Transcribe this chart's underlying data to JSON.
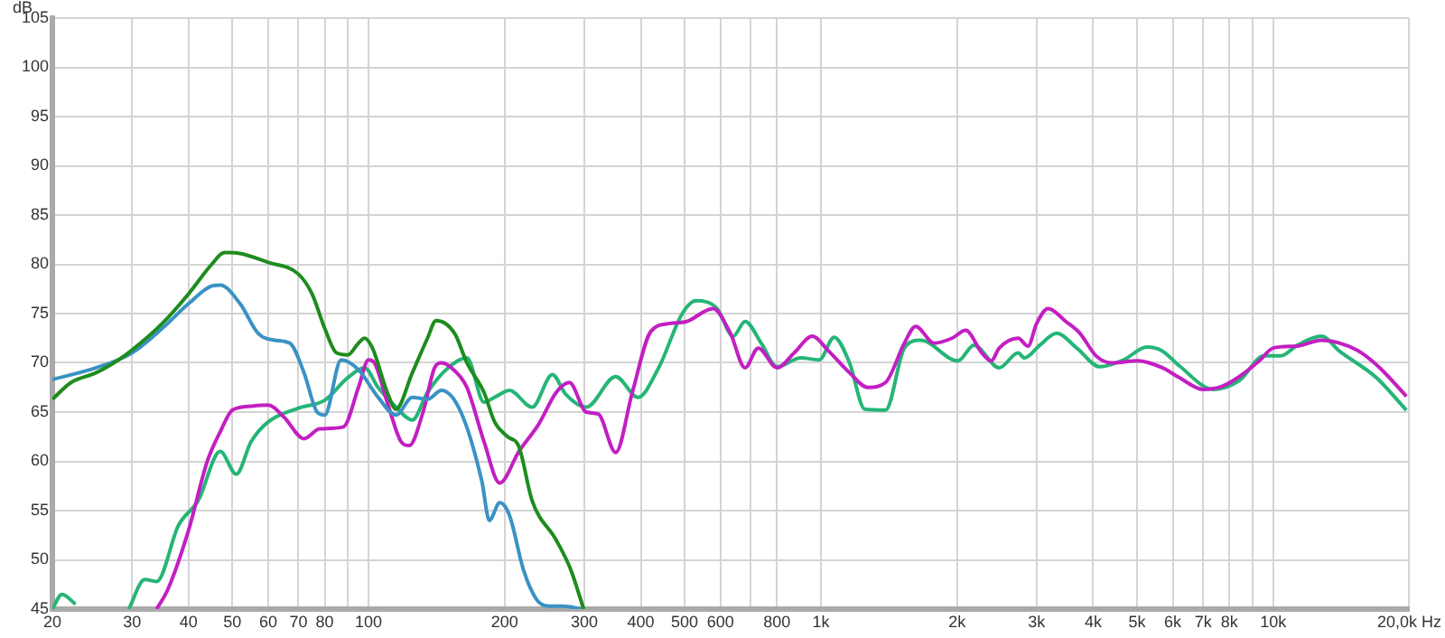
{
  "chart_data": {
    "type": "line",
    "ylabel": "dB",
    "log": "x",
    "grid": true,
    "legend": false,
    "marker": "none",
    "line_style": "solid",
    "xlim": [
      20,
      20000
    ],
    "ylim": [
      45,
      105
    ],
    "xticks": [
      20,
      30,
      40,
      50,
      60,
      70,
      80,
      {
        "value": 90,
        "label": null
      },
      100,
      200,
      300,
      400,
      500,
      600,
      {
        "value": 700,
        "label": null
      },
      800,
      {
        "value": 1000,
        "label": "1k"
      },
      {
        "value": 2000,
        "label": "2k"
      },
      {
        "value": 3000,
        "label": "3k"
      },
      {
        "value": 4000,
        "label": "4k"
      },
      {
        "value": 5000,
        "label": "5k"
      },
      {
        "value": 6000,
        "label": "6k"
      },
      {
        "value": 7000,
        "label": "7k"
      },
      {
        "value": 8000,
        "label": "8k"
      },
      {
        "value": 9000,
        "label": null
      },
      {
        "value": 10000,
        "label": "10k"
      },
      {
        "value": 20000,
        "label": "20,0k Hz"
      }
    ],
    "yticks": [
      45,
      50,
      55,
      60,
      65,
      70,
      75,
      80,
      85,
      90,
      95,
      100,
      105
    ],
    "series": [
      {
        "color": "#1e8c1e",
        "x": [
          20,
          22,
          25,
          28,
          30,
          35,
          40,
          45,
          48,
          52,
          60,
          70,
          75,
          80,
          85,
          90,
          95,
          98,
          102,
          110,
          115,
          125,
          135,
          141,
          155,
          165,
          180,
          190,
          203,
          215,
          230,
          260,
          280,
          299
        ],
        "values": [
          66.3,
          68,
          69,
          70.3,
          71.3,
          74,
          77,
          80,
          81.2,
          81.1,
          80.2,
          79,
          77,
          73.5,
          71,
          70.8,
          72,
          72.5,
          71.5,
          67,
          65.3,
          69,
          72.5,
          74.3,
          73,
          70,
          67,
          64,
          62.5,
          61.5,
          56,
          52,
          49,
          45
        ]
      },
      {
        "color": "#3a92c4",
        "x": [
          20,
          25,
          30,
          35,
          40,
          45,
          47,
          52,
          57,
          62,
          67,
          72,
          77,
          80,
          87,
          95,
          105,
          115,
          125,
          135,
          145,
          160,
          178,
          185,
          195,
          205,
          220,
          235,
          250,
          270,
          295
        ],
        "values": [
          68.3,
          69.5,
          71,
          73.5,
          76,
          77.8,
          77.9,
          76,
          73,
          72.3,
          72,
          69,
          65,
          64.7,
          70.3,
          69.3,
          66.5,
          64.7,
          66.5,
          66.3,
          67.2,
          65,
          58,
          54,
          55.8,
          54.5,
          49,
          46,
          45.3,
          45.3,
          45
        ]
      },
      {
        "color": "#c21fc2",
        "x": [
          34,
          36,
          40,
          44,
          47,
          50,
          55,
          60,
          65,
          72,
          78,
          88,
          95,
          100,
          103,
          110,
          118,
          123,
          132,
          140,
          145,
          155,
          165,
          180,
          195,
          215,
          238,
          260,
          278,
          303,
          322,
          352,
          383,
          421,
          464,
          505,
          578,
          631,
          680,
          727,
          800,
          873,
          957,
          1040,
          1157,
          1270,
          1390,
          1530,
          1620,
          1780,
          1950,
          2090,
          2270,
          2380,
          2480,
          2730,
          2870,
          3000,
          3180,
          3480,
          3740,
          4060,
          4400,
          5020,
          5690,
          6200,
          7000,
          7700,
          8420,
          9320,
          10000,
          11320,
          12800,
          15300,
          17200,
          19700
        ],
        "values": [
          45,
          47,
          53,
          60,
          63,
          65.2,
          65.6,
          65.7,
          64.5,
          62.3,
          63.3,
          63.5,
          67.5,
          70.3,
          70,
          66,
          62,
          61.6,
          65,
          69.5,
          70,
          69.2,
          67.5,
          62,
          57.8,
          61,
          63.8,
          67,
          68,
          65,
          64.8,
          60.9,
          67,
          73.2,
          74,
          74.2,
          75.5,
          73,
          69.5,
          71.5,
          69.5,
          71,
          72.7,
          71.2,
          69,
          67.5,
          68,
          72,
          73.7,
          72,
          72.5,
          73.3,
          71,
          70.2,
          71.5,
          72.5,
          71.7,
          74,
          75.5,
          74.2,
          73,
          70.7,
          70,
          70.2,
          69.5,
          68.5,
          67.3,
          67.6,
          68.6,
          70.2,
          71.5,
          71.7,
          72.3,
          71.3,
          69.5,
          66.6
        ]
      },
      {
        "color": "#25b577",
        "x": [
          20,
          21,
          22.5,
          null,
          29.5,
          32,
          34,
          38,
          42,
          47,
          51,
          55,
          60,
          70,
          80,
          90,
          98,
          105,
          115,
          125,
          135,
          150,
          165,
          180,
          190,
          205,
          230,
          255,
          273,
          303,
          352,
          394,
          438,
          494,
          530,
          590,
          640,
          680,
          738,
          800,
          903,
          992,
          1070,
          1157,
          1250,
          1390,
          1530,
          1660,
          2010,
          2180,
          2480,
          2730,
          2820,
          3050,
          3320,
          3680,
          4140,
          4670,
          5260,
          5690,
          6200,
          7380,
          8420,
          9540,
          10400,
          11320,
          12800,
          14000,
          16900,
          19700
        ],
        "values": [
          45,
          46.5,
          45.5,
          null,
          45,
          48,
          47.8,
          53.5,
          56,
          61,
          58.7,
          62,
          64,
          65.4,
          66.2,
          68.5,
          69.5,
          67.5,
          65.5,
          64.2,
          67,
          69.5,
          70.5,
          66,
          66.5,
          67.2,
          65.5,
          68.8,
          66.8,
          65.5,
          68.6,
          66.5,
          69.5,
          75,
          76.3,
          75.5,
          72.7,
          74.2,
          72,
          69.6,
          70.5,
          70.3,
          72.6,
          70,
          65.3,
          65.2,
          71.5,
          72.3,
          70.2,
          71.8,
          69.5,
          71,
          70.5,
          71.8,
          73,
          71.5,
          69.6,
          70.3,
          71.6,
          71.2,
          69.7,
          67.3,
          68.2,
          70.7,
          70.7,
          71.8,
          72.7,
          71.2,
          68.5,
          65.2
        ]
      }
    ]
  }
}
